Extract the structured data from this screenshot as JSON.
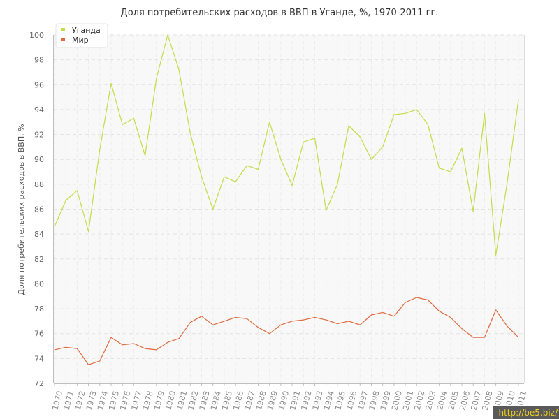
{
  "chart_data": {
    "type": "line",
    "title": "Доля потребительских расходов в ВВП в Уганде, %, 1970-2011 гг.",
    "xlabel": "",
    "ylabel": "Доля потребительских расходов в ВВП, %",
    "ylim": [
      72,
      100
    ],
    "yticks": [
      72,
      74,
      76,
      78,
      80,
      82,
      84,
      86,
      88,
      90,
      92,
      94,
      96,
      98,
      100
    ],
    "grid": true,
    "legend": "top-left",
    "x": [
      1970,
      1971,
      1972,
      1973,
      1974,
      1975,
      1976,
      1977,
      1978,
      1979,
      1980,
      1981,
      1982,
      1983,
      1984,
      1985,
      1986,
      1987,
      1988,
      1989,
      1990,
      1991,
      1992,
      1993,
      1994,
      1995,
      1996,
      1997,
      1998,
      1999,
      2000,
      2001,
      2002,
      2003,
      2004,
      2005,
      2006,
      2007,
      2008,
      2009,
      2010,
      2011
    ],
    "series": [
      {
        "name": "Уганда",
        "color": "#c2dc4a",
        "values": [
          84.6,
          86.7,
          87.5,
          84.2,
          90.8,
          96.1,
          92.8,
          93.3,
          90.3,
          96.5,
          100.0,
          97.2,
          92.1,
          88.6,
          86.0,
          88.6,
          88.2,
          89.5,
          89.2,
          93.0,
          90.0,
          87.9,
          91.4,
          91.7,
          85.9,
          88.0,
          92.7,
          91.8,
          90.0,
          91.0,
          93.6,
          93.7,
          94.0,
          92.8,
          89.3,
          89.0,
          90.9,
          85.8,
          93.7,
          82.3,
          88.1,
          94.8
        ]
      },
      {
        "name": "Мир",
        "color": "#e06a3d",
        "values": [
          74.7,
          74.9,
          74.8,
          73.5,
          73.8,
          75.7,
          75.1,
          75.2,
          74.8,
          74.7,
          75.3,
          75.6,
          76.9,
          77.4,
          76.7,
          77.0,
          77.3,
          77.2,
          76.5,
          76.0,
          76.7,
          77.0,
          77.1,
          77.3,
          77.1,
          76.8,
          77.0,
          76.7,
          77.5,
          77.7,
          77.4,
          78.5,
          78.9,
          78.7,
          77.8,
          77.3,
          76.4,
          75.7,
          75.7,
          77.9,
          76.6,
          75.7
        ]
      }
    ]
  },
  "credit": "http://be5.biz/"
}
